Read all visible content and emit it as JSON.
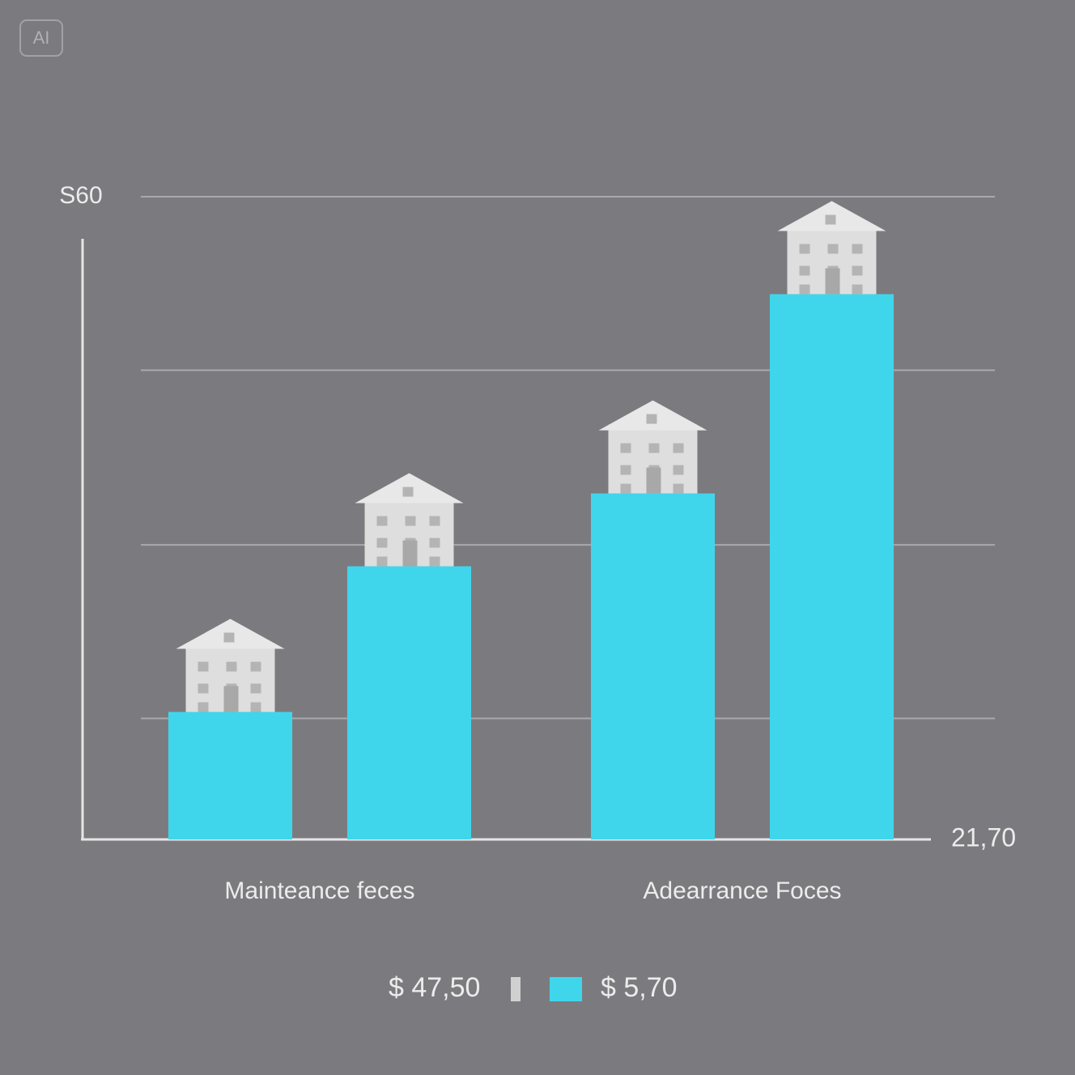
{
  "badge": "AI",
  "chart_data": {
    "type": "bar",
    "categories": [
      "Mainteance feces",
      "Adearrance Foces"
    ],
    "series": [
      {
        "name": "$ 47,50",
        "color": "#3fd6ec",
        "legend_color": "#d0d0d0",
        "values": [
          11.9,
          32.3
        ]
      },
      {
        "name": "$ 5,70",
        "color": "#3fd6ec",
        "legend_color": "#3fd6ec",
        "values": [
          25.5,
          50.9
        ]
      }
    ],
    "ylim": [
      0,
      60
    ],
    "yticks": [
      {
        "value": 60,
        "label": "S60"
      },
      {
        "value": 43.8,
        "label": null
      },
      {
        "value": 27.5,
        "label": null
      },
      {
        "value": 11.3,
        "label": null
      }
    ],
    "grid": true,
    "annotation": "21,70"
  }
}
